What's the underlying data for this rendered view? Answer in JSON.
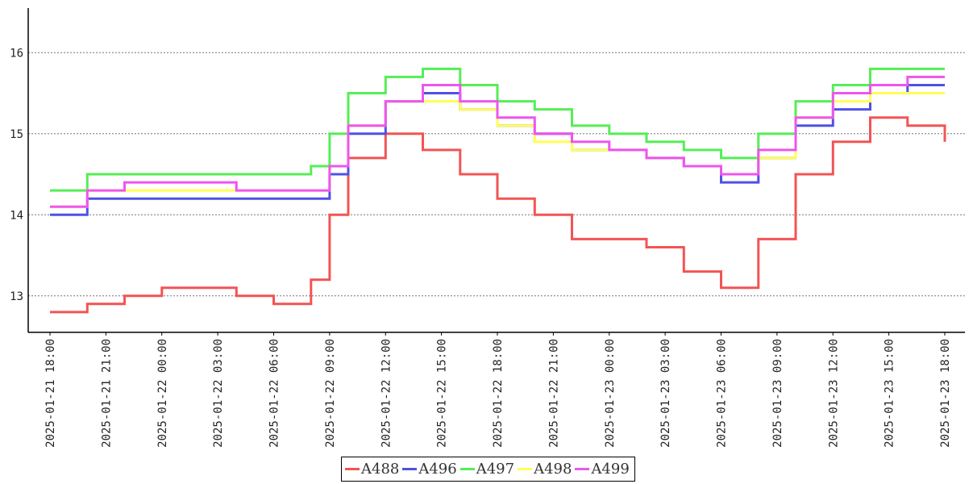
{
  "chart_data": {
    "type": "line",
    "title": "",
    "xlabel": "",
    "ylabel": "",
    "ylim": [
      12.55,
      16.55
    ],
    "yticks": [
      13,
      14,
      15,
      16
    ],
    "grid": "horizontal-dotted",
    "legend_position": "bottom-center",
    "x_tick_labels": [
      "2025-01-21 18:00",
      "2025-01-21 21:00",
      "2025-01-22 00:00",
      "2025-01-22 03:00",
      "2025-01-22 06:00",
      "2025-01-22 09:00",
      "2025-01-22 12:00",
      "2025-01-22 15:00",
      "2025-01-22 18:00",
      "2025-01-22 21:00",
      "2025-01-23 00:00",
      "2025-01-23 03:00",
      "2025-01-23 06:00",
      "2025-01-23 09:00",
      "2025-01-23 12:00",
      "2025-01-23 15:00",
      "2025-01-23 18:00"
    ],
    "x_hours": [
      0,
      2,
      4,
      6,
      8,
      10,
      12,
      14,
      15,
      16,
      18,
      20,
      22,
      24,
      26,
      28,
      30,
      32,
      34,
      36,
      38,
      40,
      42,
      44,
      46,
      48
    ],
    "series": [
      {
        "name": "A488",
        "color": "#f25454",
        "values": [
          12.8,
          12.9,
          13.0,
          13.1,
          13.1,
          13.0,
          12.9,
          13.2,
          14.0,
          14.7,
          15.0,
          14.8,
          14.5,
          14.2,
          14.0,
          13.7,
          13.7,
          13.6,
          13.3,
          13.1,
          13.7,
          14.5,
          14.9,
          15.2,
          15.1,
          14.9
        ]
      },
      {
        "name": "A496",
        "color": "#5050e6",
        "values": [
          14.0,
          14.2,
          14.2,
          14.2,
          14.2,
          14.2,
          14.2,
          14.2,
          14.5,
          15.0,
          15.4,
          15.5,
          15.3,
          15.1,
          15.0,
          14.8,
          14.8,
          14.7,
          14.6,
          14.4,
          14.7,
          15.1,
          15.3,
          15.5,
          15.6,
          15.6
        ]
      },
      {
        "name": "A497",
        "color": "#55ee55",
        "values": [
          14.3,
          14.5,
          14.5,
          14.5,
          14.5,
          14.5,
          14.5,
          14.6,
          15.0,
          15.5,
          15.7,
          15.8,
          15.6,
          15.4,
          15.3,
          15.1,
          15.0,
          14.9,
          14.8,
          14.7,
          15.0,
          15.4,
          15.6,
          15.8,
          15.8,
          15.8
        ]
      },
      {
        "name": "A498",
        "color": "#ffff55",
        "values": [
          14.1,
          14.3,
          14.3,
          14.3,
          14.3,
          14.3,
          14.3,
          14.3,
          14.6,
          15.1,
          15.4,
          15.4,
          15.3,
          15.1,
          14.9,
          14.8,
          14.8,
          14.7,
          14.6,
          14.5,
          14.7,
          15.2,
          15.4,
          15.5,
          15.5,
          15.5
        ]
      },
      {
        "name": "A499",
        "color": "#ee55ee",
        "values": [
          14.1,
          14.3,
          14.4,
          14.4,
          14.4,
          14.3,
          14.3,
          14.3,
          14.6,
          15.1,
          15.4,
          15.6,
          15.4,
          15.2,
          15.0,
          14.9,
          14.8,
          14.7,
          14.6,
          14.5,
          14.8,
          15.2,
          15.5,
          15.6,
          15.7,
          15.7
        ]
      }
    ]
  }
}
